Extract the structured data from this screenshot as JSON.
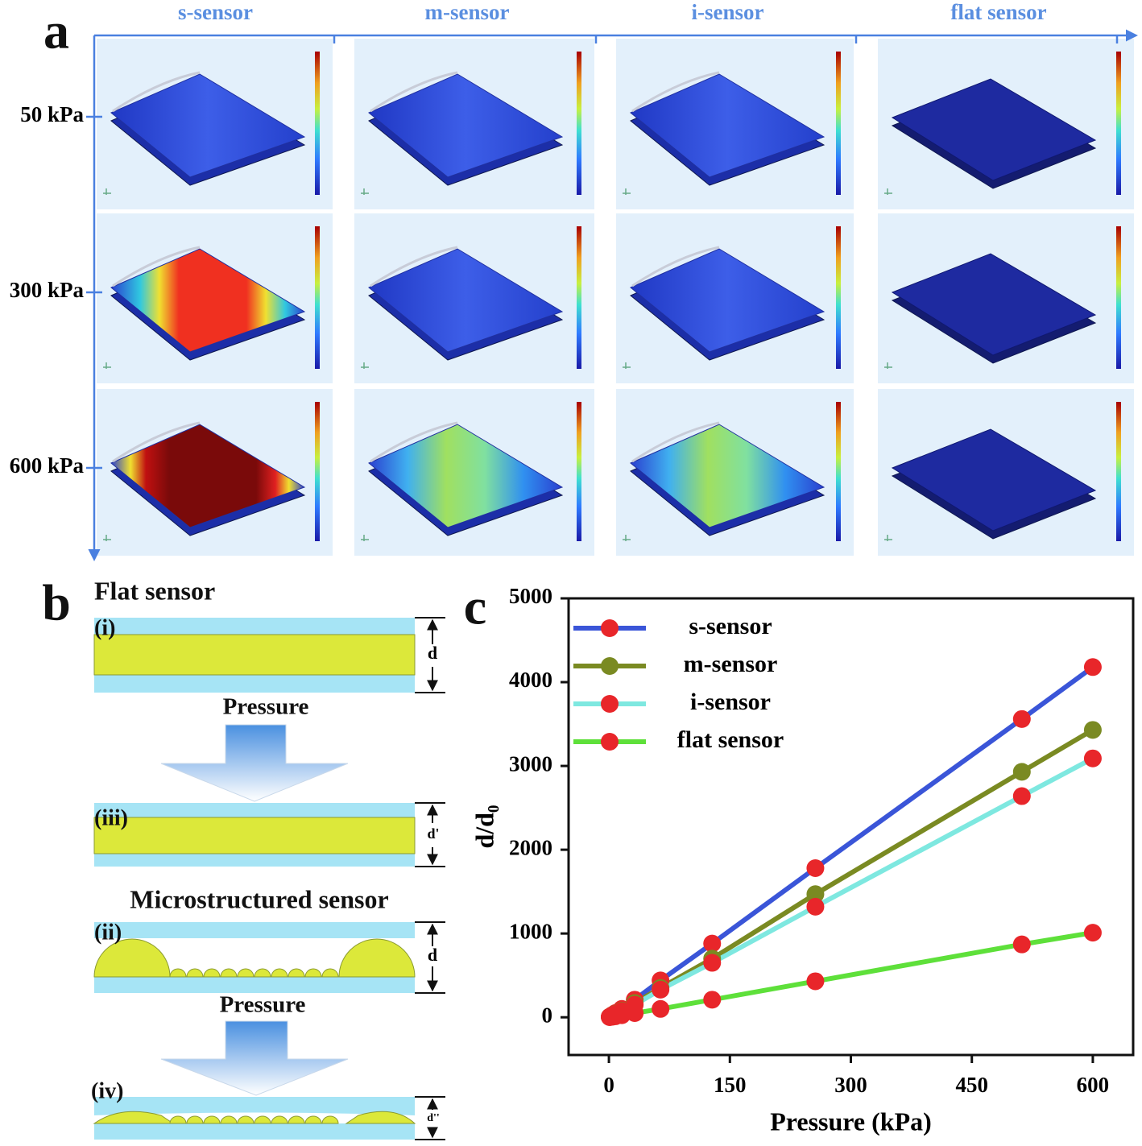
{
  "panel_a": {
    "label": "a",
    "columns": [
      "s-sensor",
      "m-sensor",
      "i-sensor",
      "flat sensor"
    ],
    "rows": [
      "50 kPa",
      "300 kPa",
      "600 kPa"
    ]
  },
  "panel_b": {
    "label": "b",
    "flat_title": "Flat sensor",
    "micro_title": "Microstructured sensor",
    "step_labels": [
      "(i)",
      "(iii)",
      "(ii)",
      "(iv)"
    ],
    "pressure": [
      "Pressure",
      "Pressure"
    ],
    "gaps": [
      "d",
      "d'",
      "d",
      "d''"
    ]
  },
  "chart_data": {
    "type": "line",
    "label": "c",
    "xlabel": "Pressure (kPa)",
    "ylabel": "d/d₀",
    "x": [
      1,
      4,
      8,
      16,
      32,
      64,
      128,
      256,
      512,
      600
    ],
    "xlim": [
      -50,
      650
    ],
    "ylim": [
      -450,
      5000
    ],
    "xticks": [
      0,
      150,
      300,
      450,
      600
    ],
    "yticks": [
      0,
      1000,
      2000,
      3000,
      4000,
      5000
    ],
    "legend": "upper left",
    "series": [
      {
        "name": "s-sensor",
        "color": "#3a55d8",
        "marker_color": "#e8262a",
        "values": [
          6,
          25,
          50,
          100,
          210,
          440,
          880,
          1780,
          3560,
          4180
        ]
      },
      {
        "name": "m-sensor",
        "color": "#7a8a22",
        "marker_color": "#7a8a22",
        "values": [
          5,
          20,
          40,
          80,
          170,
          350,
          700,
          1470,
          2930,
          3430
        ]
      },
      {
        "name": "i-sensor",
        "color": "#7ee8e0",
        "marker_color": "#e8262a",
        "values": [
          5,
          18,
          37,
          75,
          150,
          330,
          650,
          1320,
          2640,
          3090
        ]
      },
      {
        "name": "flat sensor",
        "color": "#5ee03a",
        "marker_color": "#e8262a",
        "values": [
          2,
          6,
          12,
          25,
          50,
          100,
          210,
          430,
          870,
          1010
        ]
      }
    ]
  }
}
